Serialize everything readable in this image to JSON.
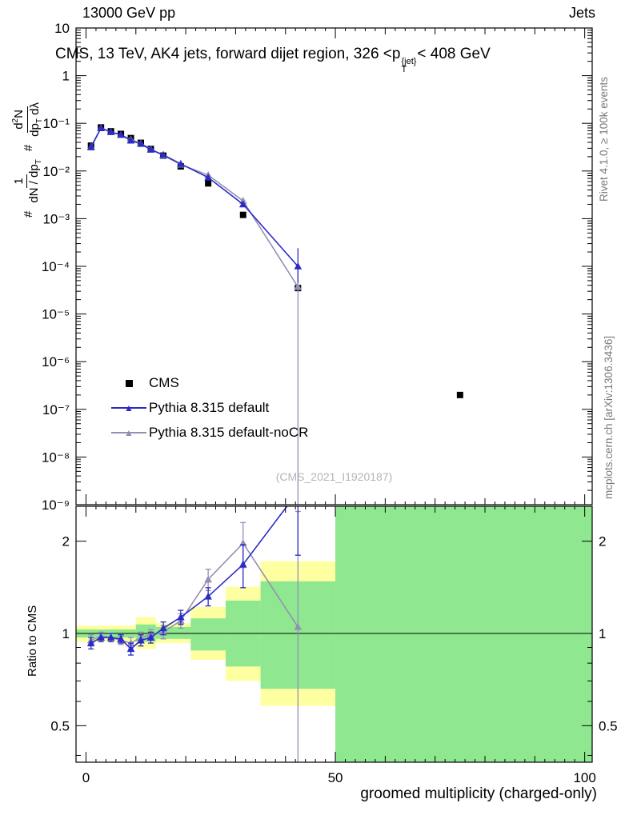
{
  "header": {
    "left": "13000 GeV pp",
    "right": "Jets"
  },
  "plot_title": {
    "pre": "CMS, 13 TeV, AK4 jets, forward dijet region, 326 <p",
    "sup": "{jet}",
    "sub": "T",
    "post": "< 408 GeV"
  },
  "ylabel_parts": {
    "hash1": "#",
    "f1_num": "1",
    "f1_den_main": "dN / dp",
    "f1_den_sub": "T",
    "hash2": "#",
    "f2_num_a": "d",
    "f2_num_sup": "2",
    "f2_num_b": "N",
    "f2_den_a": "dp",
    "f2_den_sub": "T",
    "f2_den_b": " dλ"
  },
  "ratio_ylabel": "Ratio to CMS",
  "xlabel": "groomed multiplicity (charged-only)",
  "watermark": "(CMS_2021_I1920187)",
  "side_labels": {
    "rivet": "Rivet 4.1.0, ≥ 100k events",
    "mcplots": "mcplots.cern.ch [arXiv:1306.3436]"
  },
  "legend": [
    {
      "label": "CMS",
      "marker": "square",
      "color": "#000000",
      "line": false
    },
    {
      "label": "Pythia 8.315 default",
      "marker": "triangle",
      "color": "#2b2bc8",
      "line": true
    },
    {
      "label": "Pythia 8.315 default-noCR",
      "marker": "triangle",
      "color": "#9191b4",
      "line": true
    }
  ],
  "chart_data": {
    "type": "scatter-line histogram with ratio panel",
    "title": "CMS, 13 TeV, AK4 jets, forward dijet region, 326 < pT^jet < 408 GeV",
    "xlabel": "groomed multiplicity (charged-only)",
    "ylabel": "# 1/(dN/dpT) d²N/(dpT dλ)",
    "x_axis": {
      "range": [
        -2,
        101.5
      ],
      "major": [
        0,
        50,
        100
      ],
      "labels": [
        "0",
        "50",
        "100"
      ],
      "medium_step": 10,
      "minor_step": 2
    },
    "main_y": {
      "scale": "log",
      "range": [
        1e-09,
        10
      ],
      "ticks": [
        {
          "v": 10,
          "label": "10"
        },
        {
          "v": 1,
          "label": "1"
        },
        {
          "v": 0.1,
          "label": "10⁻¹"
        },
        {
          "v": 0.01,
          "label": "10⁻²"
        },
        {
          "v": 0.001,
          "label": "10⁻³"
        },
        {
          "v": 0.0001,
          "label": "10⁻⁴"
        },
        {
          "v": 1e-05,
          "label": "10⁻⁵"
        },
        {
          "v": 1e-06,
          "label": "10⁻⁶"
        },
        {
          "v": 1e-07,
          "label": "10⁻⁷"
        },
        {
          "v": 1e-08,
          "label": "10⁻⁸"
        },
        {
          "v": 1e-09,
          "label": "10⁻⁹"
        }
      ]
    },
    "ratio_y": {
      "scale": "log",
      "range": [
        0.38,
        2.6
      ],
      "label": "Ratio to CMS",
      "ticks": [
        {
          "v": 0.5,
          "label": "0.5"
        },
        {
          "v": 1,
          "label": "1"
        },
        {
          "v": 2,
          "label": "2"
        }
      ],
      "minor": [
        0.4,
        0.6,
        0.7,
        0.8,
        0.9
      ]
    },
    "x": [
      1,
      3,
      5,
      7,
      9,
      11,
      13,
      15.5,
      19,
      24.5,
      31.5,
      42.5,
      75
    ],
    "series": [
      {
        "name": "CMS",
        "marker": "square",
        "color": "#000000",
        "line": false,
        "y": [
          0.034,
          0.082,
          0.068,
          0.06,
          0.049,
          0.039,
          0.029,
          0.021,
          0.0125,
          0.0055,
          0.0012,
          3.5e-05,
          2e-07
        ]
      },
      {
        "name": "Pythia 8.315 default-noCR",
        "marker": "triangle",
        "color": "#9191b4",
        "line": true,
        "y": [
          0.0323,
          0.0804,
          0.0655,
          0.057,
          0.0456,
          0.0378,
          0.0287,
          0.0212,
          0.0137,
          0.0082,
          0.00236,
          3.7e-05,
          null
        ],
        "lo": [
          0.0306,
          0.0768,
          0.0623,
          0.0543,
          0.0434,
          0.036,
          0.0272,
          0.02,
          0.0128,
          0.0077,
          0.00222,
          1e-09,
          null
        ],
        "hi": [
          0.0341,
          0.0842,
          0.0688,
          0.0598,
          0.0479,
          0.0397,
          0.0303,
          0.0224,
          0.0146,
          0.0088,
          0.0025,
          9e-05,
          null
        ]
      },
      {
        "name": "Pythia 8.315 default",
        "marker": "triangle",
        "color": "#2b2bc8",
        "line": true,
        "y": [
          0.0316,
          0.0795,
          0.066,
          0.0576,
          0.0436,
          0.0371,
          0.0281,
          0.0218,
          0.0141,
          0.0073,
          0.002,
          0.0001,
          null
        ],
        "lo": [
          0.03,
          0.076,
          0.063,
          0.055,
          0.0415,
          0.0353,
          0.0267,
          0.0206,
          0.0132,
          0.0068,
          0.00185,
          4.5e-05,
          null
        ],
        "hi": [
          0.0333,
          0.0832,
          0.0692,
          0.0603,
          0.0458,
          0.039,
          0.0296,
          0.0231,
          0.015,
          0.0078,
          0.00216,
          0.00024,
          null
        ]
      }
    ],
    "ratio": {
      "bands": {
        "yellow_color": "#feffa0",
        "green_color": "#8fe88f",
        "yellow": [
          [
            -2,
            10,
            0.94,
            1.06
          ],
          [
            10,
            14,
            0.89,
            1.13
          ],
          [
            14,
            21,
            0.93,
            1.08
          ],
          [
            21,
            28,
            0.82,
            1.22
          ],
          [
            28,
            35,
            0.7,
            1.42
          ],
          [
            35,
            50,
            0.58,
            1.72
          ],
          [
            50,
            101.5,
            0.37,
            2.65
          ]
        ],
        "green": [
          [
            -2,
            10,
            0.97,
            1.03
          ],
          [
            10,
            14,
            0.94,
            1.07
          ],
          [
            14,
            21,
            0.96,
            1.05
          ],
          [
            21,
            28,
            0.88,
            1.12
          ],
          [
            28,
            35,
            0.78,
            1.28
          ],
          [
            35,
            50,
            0.66,
            1.48
          ],
          [
            50,
            101.5,
            0.37,
            2.65
          ]
        ]
      },
      "series": [
        {
          "name": "Pythia 8.315 default-noCR",
          "marker": "triangle",
          "color": "#9191b4",
          "line": true,
          "y": [
            0.95,
            0.98,
            0.97,
            0.95,
            0.93,
            0.97,
            0.99,
            1.01,
            1.1,
            1.5,
            1.97,
            1.05,
            null
          ],
          "lo": [
            0.91,
            0.95,
            0.94,
            0.92,
            0.89,
            0.93,
            0.95,
            0.96,
            1.04,
            1.38,
            1.64,
            0.2,
            null
          ],
          "hi": [
            0.99,
            1.01,
            1.0,
            0.98,
            0.97,
            1.01,
            1.03,
            1.06,
            1.16,
            1.62,
            2.3,
            2.5,
            null
          ]
        },
        {
          "name": "Pythia 8.315 default",
          "marker": "triangle",
          "color": "#2b2bc8",
          "line": true,
          "y": [
            0.93,
            0.97,
            0.97,
            0.96,
            0.89,
            0.95,
            0.97,
            1.04,
            1.13,
            1.32,
            1.68,
            2.9,
            null
          ],
          "lo": [
            0.89,
            0.94,
            0.94,
            0.93,
            0.85,
            0.91,
            0.93,
            0.99,
            1.07,
            1.23,
            1.41,
            1.8,
            null
          ],
          "hi": [
            0.97,
            1.0,
            1.0,
            0.99,
            0.93,
            0.99,
            1.01,
            1.09,
            1.19,
            1.41,
            1.95,
            4.0,
            null
          ]
        }
      ]
    }
  }
}
